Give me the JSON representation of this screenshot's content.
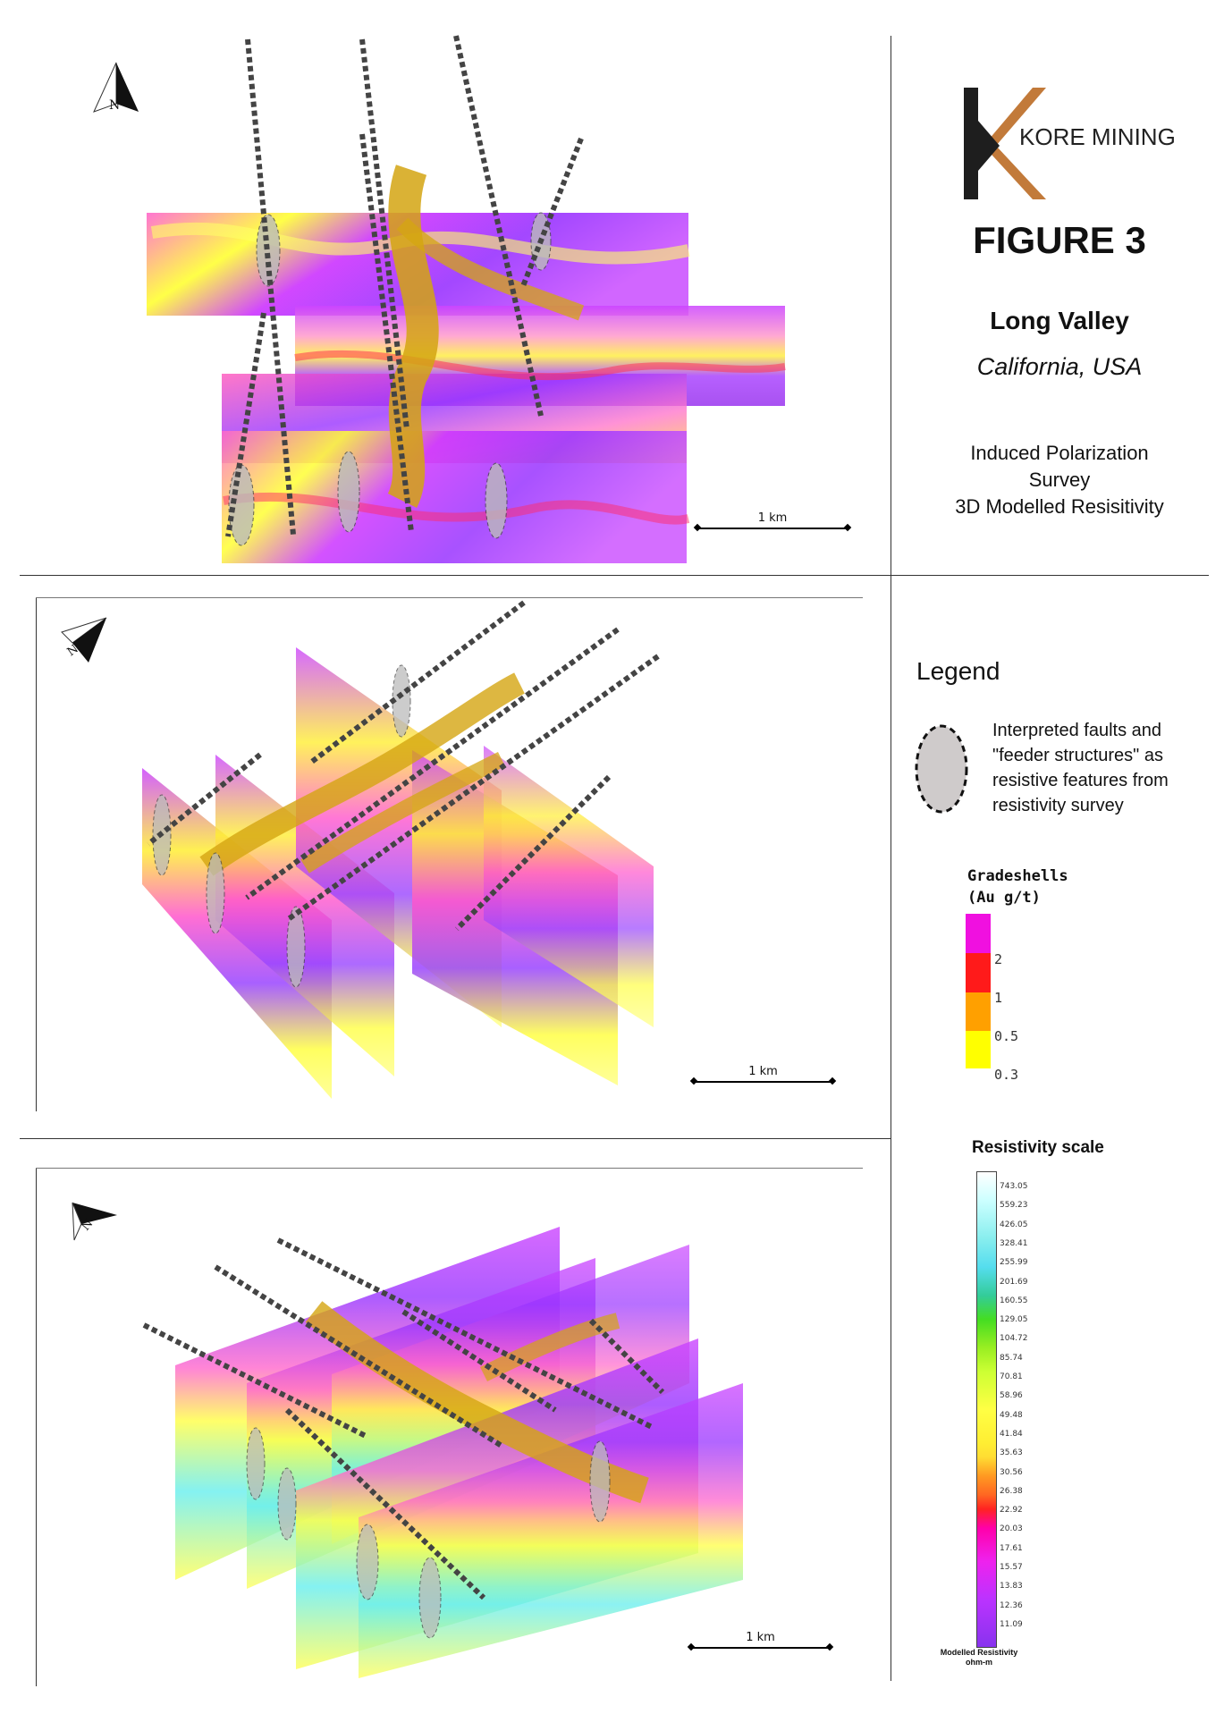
{
  "brand": {
    "name": "KORE MINING",
    "colors": {
      "dark": "#1e1e1e",
      "accent": "#c27a3a"
    }
  },
  "figure": {
    "title": "FIGURE 3",
    "location_name": "Long Valley",
    "location_region": "California, USA",
    "survey_lines": [
      "Induced Polarization",
      "Survey",
      "3D Modelled Resisitivity"
    ]
  },
  "panels": [
    {
      "scale_label": "1 km",
      "compass": "N"
    },
    {
      "scale_label": "1 km",
      "compass": "N"
    },
    {
      "scale_label": "1 km",
      "compass": "N"
    }
  ],
  "legend": {
    "heading": "Legend",
    "fault_text_lines": [
      "Interpreted faults and",
      "\"feeder structures\" as",
      "resistive features from",
      "resistivity survey"
    ],
    "gradeshells": {
      "title_lines": [
        "Gradeshells",
        "(Au g/t)"
      ],
      "levels": [
        "2",
        "1",
        "0.5",
        "0.3"
      ],
      "colors": [
        "#f010e0",
        "#ff1a1a",
        "#ffa000",
        "#ffff00"
      ]
    },
    "resistivity": {
      "title": "Resistivity scale",
      "values": [
        "743.05",
        "559.23",
        "426.05",
        "328.41",
        "255.99",
        "201.69",
        "160.55",
        "129.05",
        "104.72",
        "85.74",
        "70.81",
        "58.96",
        "49.48",
        "41.84",
        "35.63",
        "30.56",
        "26.38",
        "22.92",
        "20.03",
        "17.61",
        "15.57",
        "13.83",
        "12.36",
        "11.09"
      ],
      "footer_lines": [
        "Modelled Resistivity",
        "ohm-m"
      ]
    }
  }
}
